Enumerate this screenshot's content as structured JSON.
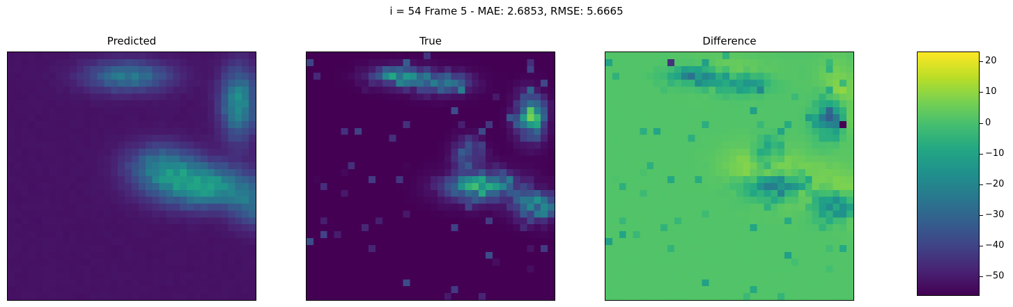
{
  "figure": {
    "suptitle": "i = 54 Frame 5 - MAE: 2.6853, RMSE: 5.6665"
  },
  "chart_data": [
    {
      "type": "heatmap",
      "title": "Predicted",
      "colormap": "viridis",
      "grid_size": [
        36,
        36
      ],
      "value_range": [
        0,
        30
      ],
      "description_of_content": "mostly low values; brighter band from top-center to the right edge and middle-right"
    },
    {
      "type": "heatmap",
      "title": "True",
      "colormap": "viridis",
      "grid_size": [
        36,
        36
      ],
      "value_range": [
        0,
        60
      ],
      "description_of_content": "mostly zero; scattered bright cells along upper band and lower-right cluster"
    },
    {
      "type": "heatmap",
      "title": "Difference",
      "colormap": "viridis",
      "grid_size": [
        36,
        36
      ],
      "value_range": [
        -56,
        23
      ],
      "colorbar": {
        "min": -56,
        "max": 23,
        "ticks": [
          20,
          10,
          0,
          -10,
          -20,
          -30,
          -40,
          -50
        ],
        "tick_labels": [
          "20",
          "10",
          "0",
          "−10",
          "−20",
          "−30",
          "−40",
          "−50"
        ]
      }
    }
  ]
}
